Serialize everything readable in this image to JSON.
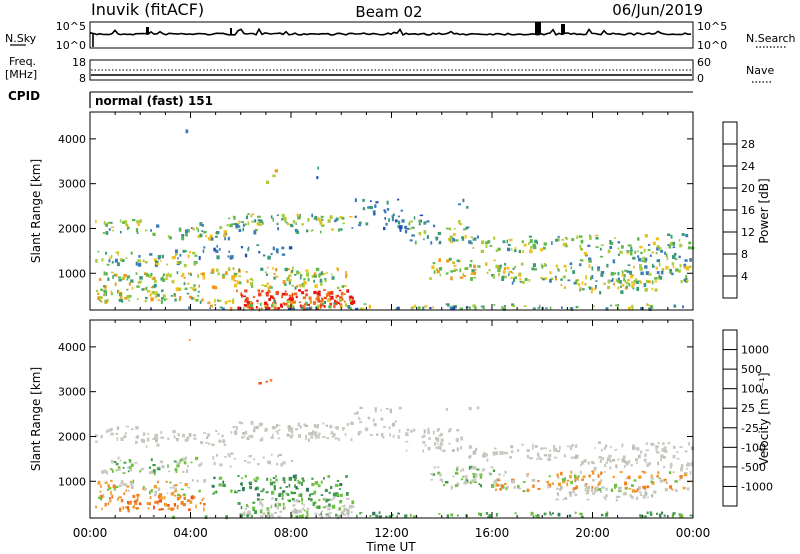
{
  "header": {
    "station": "Inuvik (fitACF)",
    "beam": "Beam 02",
    "date": "06/Jun/2019"
  },
  "top_panels": {
    "nsky_label": "N.Sky",
    "nsky_ticks": [
      "10^5",
      "10^0"
    ],
    "nsearch_label": "N.Search",
    "nsearch_ticks": [
      "10^5",
      "10^0"
    ],
    "freq_label": "Freq.",
    "freq_unit": "[MHz]",
    "freq_ticks": [
      "18",
      "8"
    ],
    "nave_label": "Nave",
    "nave_ticks": [
      "60",
      "0"
    ],
    "cpid_label": "CPID",
    "cpid_value": "normal (fast) 151"
  },
  "chart_data": [
    {
      "type": "heatmap",
      "name": "power",
      "ylabel": "Slant Range [km]",
      "yticks": [
        "1000",
        "2000",
        "3000",
        "4000"
      ],
      "ylim": [
        180,
        4600
      ],
      "xlim": [
        0,
        24
      ],
      "colorbar": {
        "label": "Power [dB]",
        "ticks": [
          "4",
          "8",
          "12",
          "16",
          "20",
          "24",
          "28"
        ],
        "colors": [
          "#2a2ae6",
          "#2050b0",
          "#3a7ab8",
          "#3a9a78",
          "#5cb84a",
          "#a8cc3a",
          "#f0c020",
          "#f09818",
          "#f07018",
          "#ee4418",
          "#e81010"
        ]
      }
    },
    {
      "type": "heatmap",
      "name": "velocity",
      "ylabel": "Slant Range [km]",
      "yticks": [
        "1000",
        "2000",
        "3000",
        "4000"
      ],
      "ylim": [
        180,
        4600
      ],
      "xlim": [
        0,
        24
      ],
      "xlabel": "Time UT",
      "xticks": [
        "00:00",
        "04:00",
        "08:00",
        "12:00",
        "16:00",
        "20:00",
        "00:00"
      ],
      "colorbar": {
        "label": "Velocity [m s⁻¹]",
        "ticks": [
          "1000",
          "500",
          "100",
          "25",
          "-25",
          "-100",
          "-500",
          "-1000"
        ],
        "colors": [
          "#1a3ad0",
          "#2860a8",
          "#2f7a60",
          "#3f9a4a",
          "#70c040",
          "#c8c8c0",
          "#c8c8c0",
          "#f0a030",
          "#f08020",
          "#f05010",
          "#e81010"
        ]
      }
    }
  ]
}
